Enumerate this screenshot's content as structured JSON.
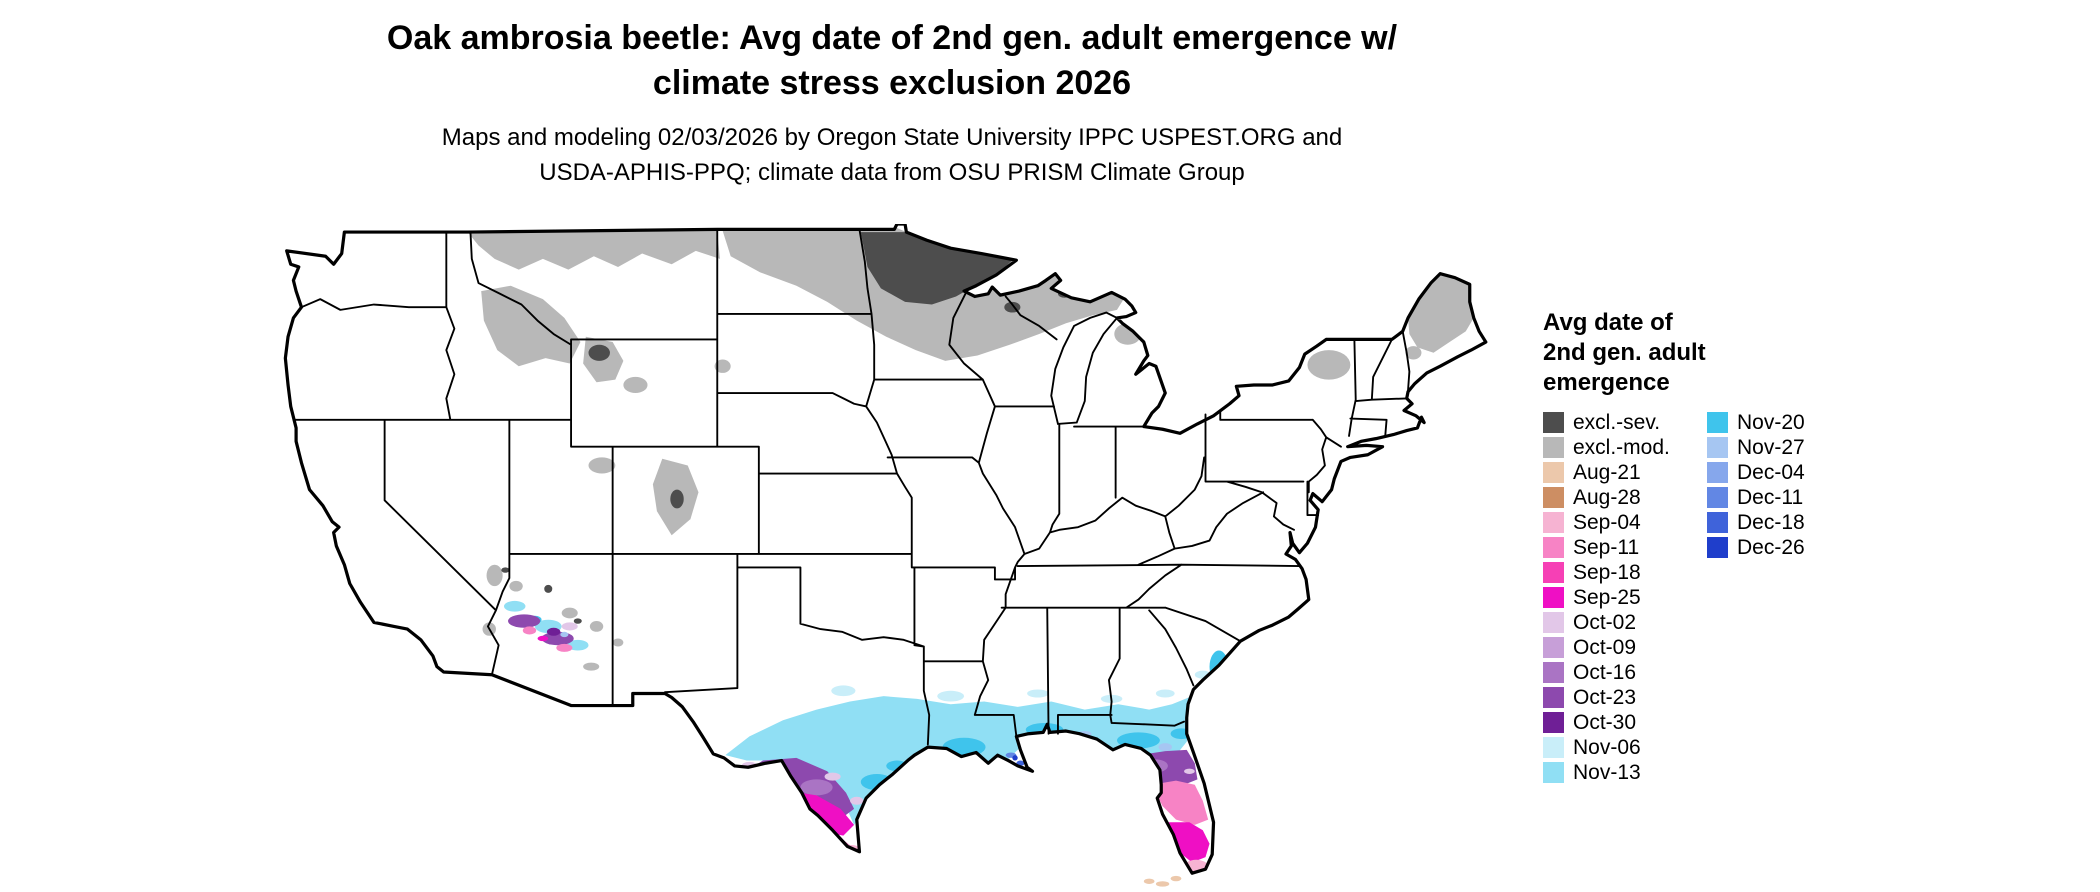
{
  "title": {
    "line1": "Oak ambrosia beetle: Avg date of 2nd gen. adult emergence w/",
    "line2": "climate stress exclusion 2026"
  },
  "subtitle": {
    "line1": "Maps and modeling 02/03/2026 by Oregon State University IPPC USPEST.ORG and",
    "line2": "USDA-APHIS-PPQ; climate data from OSU PRISM Climate Group"
  },
  "legend": {
    "title_line1": "Avg date of",
    "title_line2": "2nd gen. adult",
    "title_line3": "emergence",
    "column1": [
      {
        "label": "excl.-sev.",
        "color": "#4d4d4d"
      },
      {
        "label": "excl.-mod.",
        "color": "#b8b8b8"
      },
      {
        "label": "Aug-21",
        "color": "#ecc8ab"
      },
      {
        "label": "Aug-28",
        "color": "#cd8e63"
      },
      {
        "label": "Sep-04",
        "color": "#f6b3d2"
      },
      {
        "label": "Sep-11",
        "color": "#f783c5"
      },
      {
        "label": "Sep-18",
        "color": "#f640b5"
      },
      {
        "label": "Sep-25",
        "color": "#ef0fc4"
      },
      {
        "label": "Oct-02",
        "color": "#e2c7e8"
      },
      {
        "label": "Oct-09",
        "color": "#c79fd8"
      },
      {
        "label": "Oct-16",
        "color": "#aa74c4"
      },
      {
        "label": "Oct-23",
        "color": "#8d49ae"
      },
      {
        "label": "Oct-30",
        "color": "#6f1f96"
      },
      {
        "label": "Nov-06",
        "color": "#c9eef9"
      },
      {
        "label": "Nov-13",
        "color": "#90dff4"
      }
    ],
    "column2": [
      {
        "label": "Nov-20",
        "color": "#3fc4ec"
      },
      {
        "label": "Nov-27",
        "color": "#a6c6f2"
      },
      {
        "label": "Dec-04",
        "color": "#86a7ec"
      },
      {
        "label": "Dec-11",
        "color": "#6287e4"
      },
      {
        "label": "Dec-18",
        "color": "#3f63da"
      },
      {
        "label": "Dec-26",
        "color": "#1f3ecb"
      }
    ]
  },
  "map": {
    "type": "choropleth",
    "extent": "contiguous United States with state boundaries",
    "background": "#ffffff",
    "border_color": "#000000",
    "regions": [
      {
        "area": "northern Minnesota and adjacent northeastern North Dakota",
        "value": "excl.-sev."
      },
      {
        "area": "northern Montana, North Dakota, northern Minnesota, northern Wisconsin, Michigan Upper Peninsula",
        "value": "excl.-mod."
      },
      {
        "area": "northern Maine, Adirondacks (NY), White Mountains (NH)",
        "value": "excl.-mod."
      },
      {
        "area": "Rocky Mountain high elevations in Idaho, Wyoming, Utah, Colorado",
        "value": "excl.-mod. with excl.-sev. cores"
      },
      {
        "area": "Gulf Coast band from Texas through Louisiana, Mississippi, Alabama, Georgia to South Carolina coast",
        "value": "Nov-06 to Nov-27"
      },
      {
        "area": "south Texas interior",
        "value": "Sep-11 to Oct-30"
      },
      {
        "area": "central and southern Florida peninsula",
        "value": "Sep-04 to Oct-16"
      },
      {
        "area": "southern Florida tip and Keys",
        "value": "Aug-21 to Sep-04"
      },
      {
        "area": "central Arizona Mogollon Rim belt",
        "value": "Sep-25 to Nov-20 with exclusion specks"
      }
    ]
  }
}
